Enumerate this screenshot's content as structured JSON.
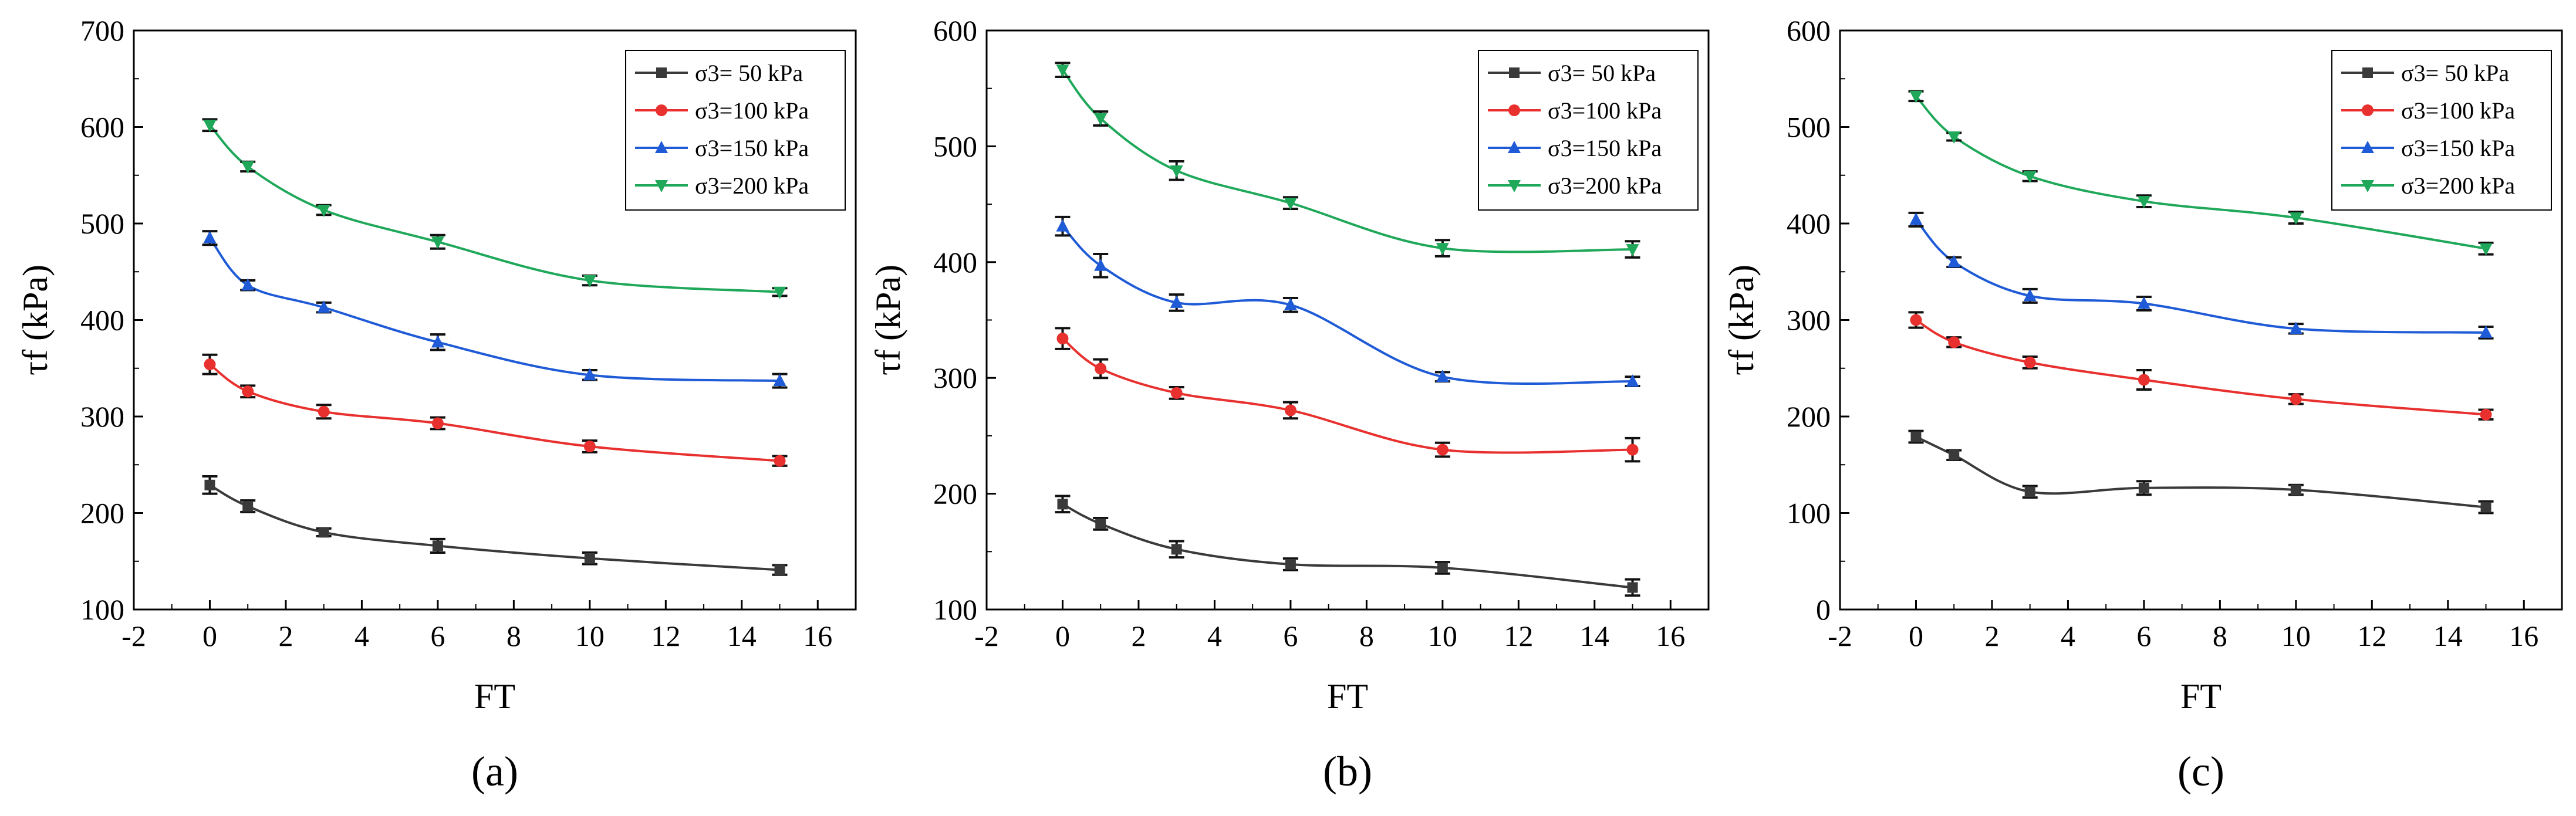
{
  "colors": {
    "s50": "#3a3a3a",
    "s100": "#e8312f",
    "s150": "#1f5bd6",
    "s200": "#1fa85a",
    "errorbar": "#111111"
  },
  "chart_data": [
    {
      "type": "line",
      "panel_label": "a",
      "xlabel": "FT",
      "ylabel": "τf (kPa)",
      "xlim": [
        -2,
        17
      ],
      "ylim": [
        100,
        700
      ],
      "xticks": [
        -2,
        0,
        2,
        4,
        6,
        8,
        10,
        12,
        14,
        16
      ],
      "yticks": [
        100,
        200,
        300,
        400,
        500,
        600,
        700
      ],
      "x": [
        0,
        1,
        3,
        6,
        10,
        15
      ],
      "series": [
        {
          "name": "σ3=  50 kPa",
          "marker": "square",
          "color_key": "s50",
          "values": [
            229,
            207,
            180,
            166,
            153,
            141
          ],
          "errors": [
            9,
            6,
            4,
            7,
            6,
            5
          ]
        },
        {
          "name": "σ3=100 kPa",
          "marker": "circle",
          "color_key": "s100",
          "values": [
            354,
            326,
            305,
            293,
            269,
            254
          ],
          "errors": [
            10,
            6,
            7,
            6,
            6,
            5
          ]
        },
        {
          "name": "σ3=150 kPa",
          "marker": "triangle-up",
          "color_key": "s150",
          "values": [
            485,
            436,
            413,
            377,
            343,
            337
          ],
          "errors": [
            7,
            5,
            5,
            8,
            5,
            7
          ]
        },
        {
          "name": "σ3=200 kPa",
          "marker": "triangle-down",
          "color_key": "s200",
          "values": [
            602,
            559,
            514,
            481,
            441,
            429
          ],
          "errors": [
            6,
            5,
            5,
            7,
            5,
            4
          ]
        }
      ]
    },
    {
      "type": "line",
      "panel_label": "b",
      "xlabel": "FT",
      "ylabel": "τf (kPa)",
      "xlim": [
        -2,
        17
      ],
      "ylim": [
        100,
        600
      ],
      "xticks": [
        -2,
        0,
        2,
        4,
        6,
        8,
        10,
        12,
        14,
        16
      ],
      "yticks": [
        100,
        200,
        300,
        400,
        500,
        600
      ],
      "x": [
        0,
        1,
        3,
        6,
        10,
        15
      ],
      "series": [
        {
          "name": "σ3=  50 kPa",
          "marker": "square",
          "color_key": "s50",
          "values": [
            191,
            174,
            152,
            139,
            136,
            119
          ],
          "errors": [
            7,
            5,
            7,
            5,
            5,
            7
          ]
        },
        {
          "name": "σ3=100 kPa",
          "marker": "circle",
          "color_key": "s100",
          "values": [
            334,
            308,
            287,
            272,
            238,
            238
          ],
          "errors": [
            9,
            8,
            5,
            7,
            6,
            10
          ]
        },
        {
          "name": "σ3=150 kPa",
          "marker": "triangle-up",
          "color_key": "s150",
          "values": [
            431,
            397,
            365,
            363,
            301,
            297
          ],
          "errors": [
            8,
            10,
            7,
            6,
            4,
            4
          ]
        },
        {
          "name": "σ3=200 kPa",
          "marker": "triangle-down",
          "color_key": "s200",
          "values": [
            566,
            524,
            479,
            451,
            412,
            411
          ],
          "errors": [
            6,
            6,
            8,
            5,
            7,
            7
          ]
        }
      ]
    },
    {
      "type": "line",
      "panel_label": "c",
      "xlabel": "FT",
      "ylabel": "τf (kPa)",
      "xlim": [
        -2,
        17
      ],
      "ylim": [
        0,
        600
      ],
      "xticks": [
        -2,
        0,
        2,
        4,
        6,
        8,
        10,
        12,
        14,
        16
      ],
      "yticks": [
        0,
        100,
        200,
        300,
        400,
        500,
        600
      ],
      "x": [
        0,
        1,
        3,
        6,
        10,
        15
      ],
      "series": [
        {
          "name": "σ3=  50 kPa",
          "marker": "square",
          "color_key": "s50",
          "values": [
            179,
            160,
            122,
            126,
            124,
            106
          ],
          "errors": [
            6,
            5,
            6,
            7,
            5,
            6
          ]
        },
        {
          "name": "σ3=100 kPa",
          "marker": "circle",
          "color_key": "s100",
          "values": [
            300,
            277,
            256,
            238,
            218,
            202
          ],
          "errors": [
            8,
            5,
            6,
            10,
            5,
            5
          ]
        },
        {
          "name": "σ3=150 kPa",
          "marker": "triangle-up",
          "color_key": "s150",
          "values": [
            404,
            360,
            325,
            317,
            291,
            287
          ],
          "errors": [
            7,
            5,
            7,
            7,
            5,
            6
          ]
        },
        {
          "name": "σ3=200 kPa",
          "marker": "triangle-down",
          "color_key": "s200",
          "values": [
            532,
            490,
            449,
            423,
            406,
            374
          ],
          "errors": [
            5,
            4,
            5,
            6,
            6,
            6
          ]
        }
      ]
    }
  ]
}
